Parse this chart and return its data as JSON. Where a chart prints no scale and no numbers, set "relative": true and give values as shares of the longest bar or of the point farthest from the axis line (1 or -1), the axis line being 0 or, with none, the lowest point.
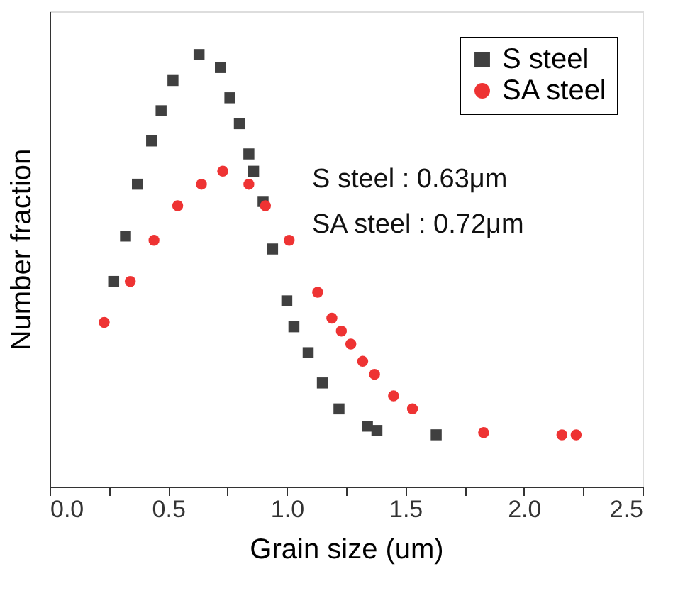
{
  "chart_data": {
    "type": "scatter",
    "relative": true,
    "xlabel": "Grain size (um)",
    "ylabel": "Number fraction",
    "xlim": [
      0,
      2.5
    ],
    "xticks": [
      {
        "value": 0,
        "label": "0.0"
      },
      {
        "value": 0.25,
        "label": null
      },
      0.5,
      {
        "value": 0.75,
        "label": null
      },
      {
        "value": 1,
        "label": "1.0"
      },
      {
        "value": 1.25,
        "label": null
      },
      1.5,
      {
        "value": 1.75,
        "label": null
      },
      {
        "value": 2,
        "label": "2.0"
      },
      {
        "value": 2.25,
        "label": null
      },
      2.5
    ],
    "grid": false,
    "legend": "top right",
    "tick_labels": "x",
    "annotations": [
      "S steel : 0.63μm",
      "SA steel : 0.72μm"
    ],
    "series": [
      {
        "name": "S steel",
        "color": "#404040",
        "marker": "square",
        "x": [
          0.27,
          0.32,
          0.37,
          0.43,
          0.47,
          0.52,
          0.63,
          0.72,
          0.76,
          0.8,
          0.84,
          0.86,
          0.9,
          0.94,
          1.0,
          1.03,
          1.09,
          1.15,
          1.22,
          1.34,
          1.38,
          1.63
        ],
        "values": [
          0.475,
          0.58,
          0.7,
          0.8,
          0.87,
          0.94,
          1.0,
          0.97,
          0.9,
          0.84,
          0.77,
          0.73,
          0.66,
          0.55,
          0.43,
          0.37,
          0.31,
          0.24,
          0.18,
          0.14,
          0.13,
          0.12
        ]
      },
      {
        "name": "SA steel",
        "color": "#ee3333",
        "marker": "circle",
        "x": [
          0.23,
          0.34,
          0.44,
          0.54,
          0.64,
          0.73,
          0.84,
          0.91,
          1.01,
          1.13,
          1.19,
          1.23,
          1.27,
          1.32,
          1.37,
          1.45,
          1.53,
          1.83,
          2.16,
          2.22
        ],
        "values": [
          0.38,
          0.475,
          0.57,
          0.65,
          0.7,
          0.73,
          0.7,
          0.65,
          0.57,
          0.45,
          0.39,
          0.36,
          0.33,
          0.29,
          0.26,
          0.21,
          0.18,
          0.125,
          0.12,
          0.12
        ]
      }
    ]
  }
}
